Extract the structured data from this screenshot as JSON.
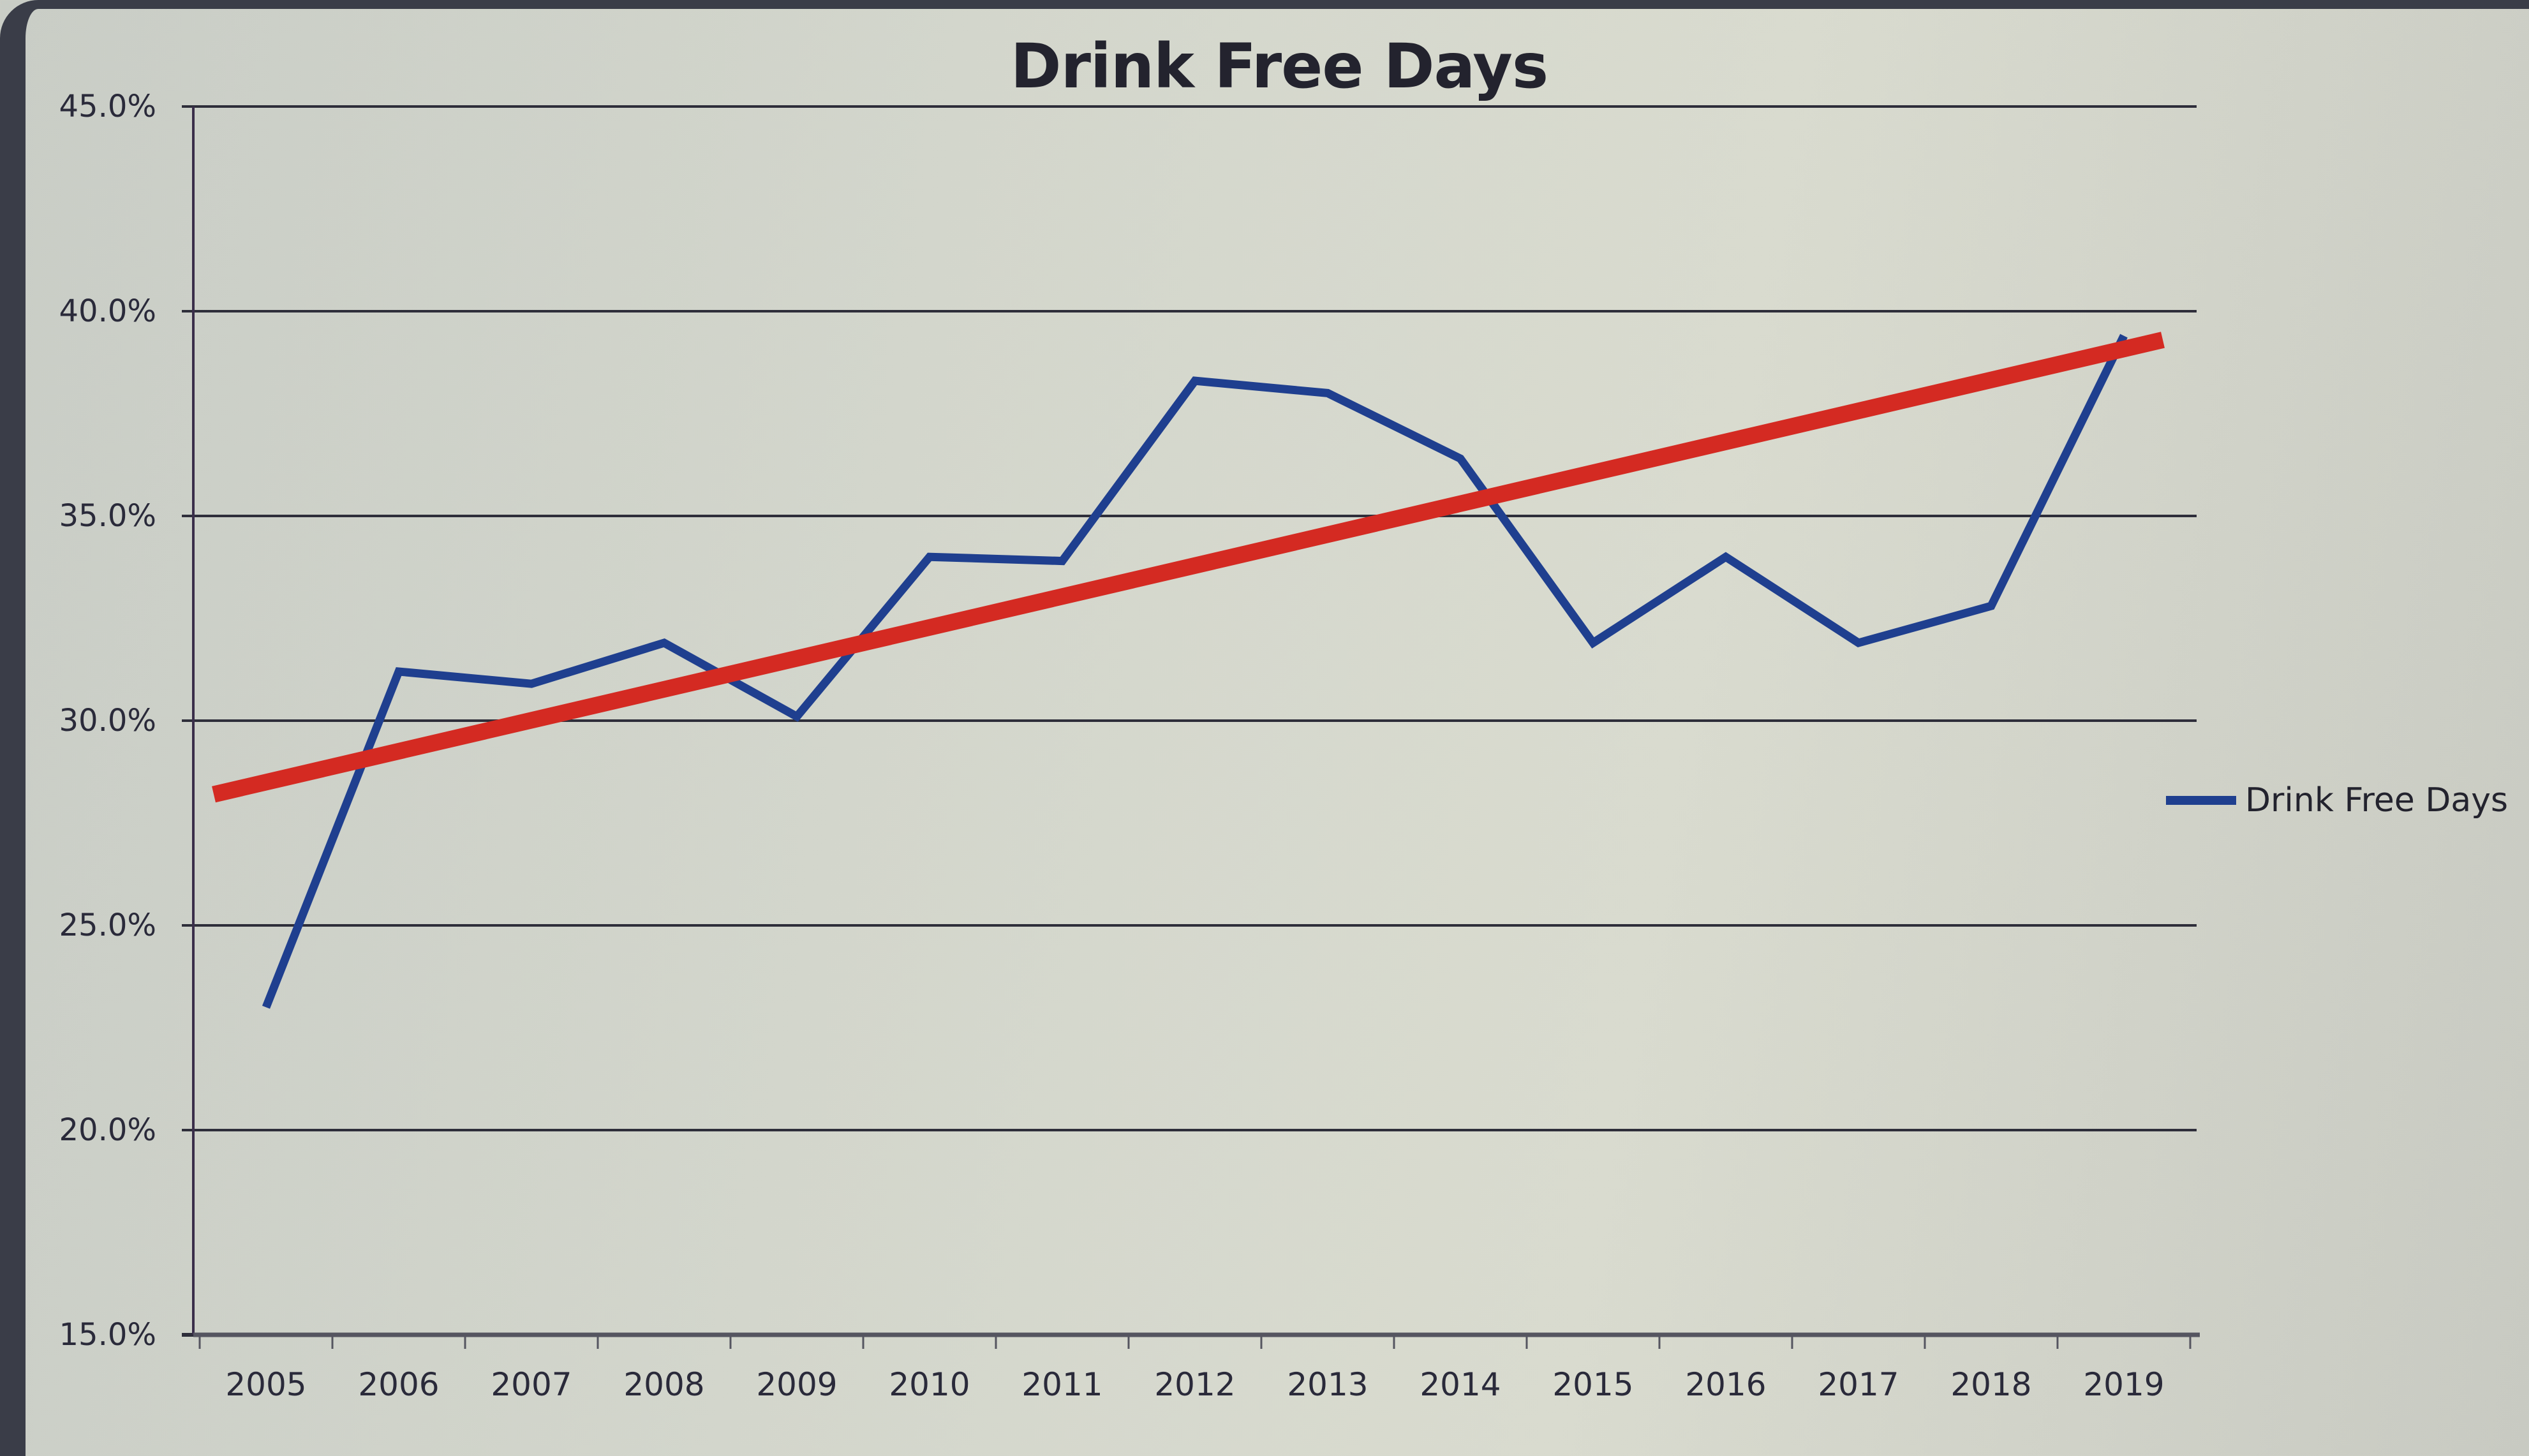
{
  "chart_data": {
    "type": "line",
    "title": "Drink Free Days",
    "xlabel": "",
    "ylabel": "",
    "categories": [
      "2005",
      "2006",
      "2007",
      "2008",
      "2009",
      "2010",
      "2011",
      "2012",
      "2013",
      "2014",
      "2015",
      "2016",
      "2017",
      "2018",
      "2019"
    ],
    "series": [
      {
        "name": "Drink Free Days",
        "color": "#1f3f8f",
        "values": [
          23.0,
          31.2,
          30.9,
          31.9,
          30.1,
          34.0,
          33.9,
          38.3,
          38.0,
          36.4,
          31.9,
          34.0,
          31.9,
          32.8,
          39.4
        ]
      }
    ],
    "trendline": {
      "type": "linear",
      "color": "#d42a22",
      "start": {
        "x": "2005",
        "y": 28.2
      },
      "end": {
        "x": "2019",
        "y": 39.3
      }
    },
    "ylim": [
      15.0,
      45.0
    ],
    "yticks": [
      "15.0%",
      "20.0%",
      "25.0%",
      "30.0%",
      "35.0%",
      "40.0%",
      "45.0%"
    ],
    "ytick_values": [
      15,
      20,
      25,
      30,
      35,
      40,
      45
    ],
    "grid": true,
    "legend": {
      "position": "right",
      "entries": [
        "Drink Free Days"
      ]
    },
    "value_format": "percent"
  },
  "legend_label": "Drink Free Days"
}
